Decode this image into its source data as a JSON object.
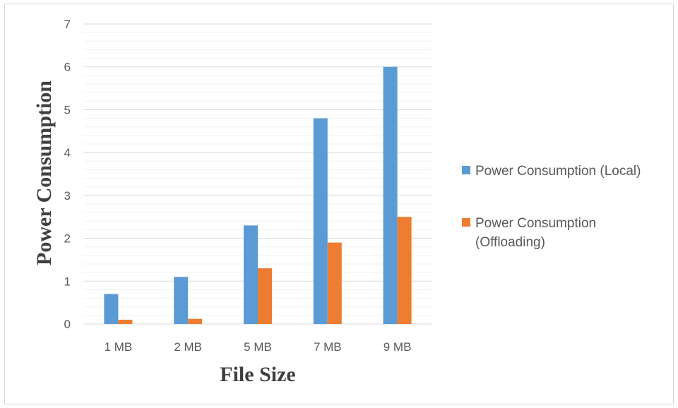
{
  "chart_data": {
    "type": "bar",
    "title": "",
    "xlabel": "File Size",
    "ylabel": "Power Consumption",
    "categories": [
      "1 MB",
      "2 MB",
      "5 MB",
      "7 MB",
      "9 MB"
    ],
    "series": [
      {
        "name": "Power Consumption (Local)",
        "color": "#5B9BD5",
        "values": [
          0.7,
          1.1,
          2.3,
          4.8,
          6.0
        ]
      },
      {
        "name": "Power Consumption (Offloading)",
        "color": "#ED7D31",
        "values": [
          0.1,
          0.12,
          1.3,
          1.9,
          2.5
        ]
      }
    ],
    "ylim": [
      0,
      7
    ],
    "yticks": [
      "0",
      "1",
      "2",
      "3",
      "4",
      "5",
      "6",
      "7"
    ],
    "grid": true,
    "legend_position": "right"
  }
}
